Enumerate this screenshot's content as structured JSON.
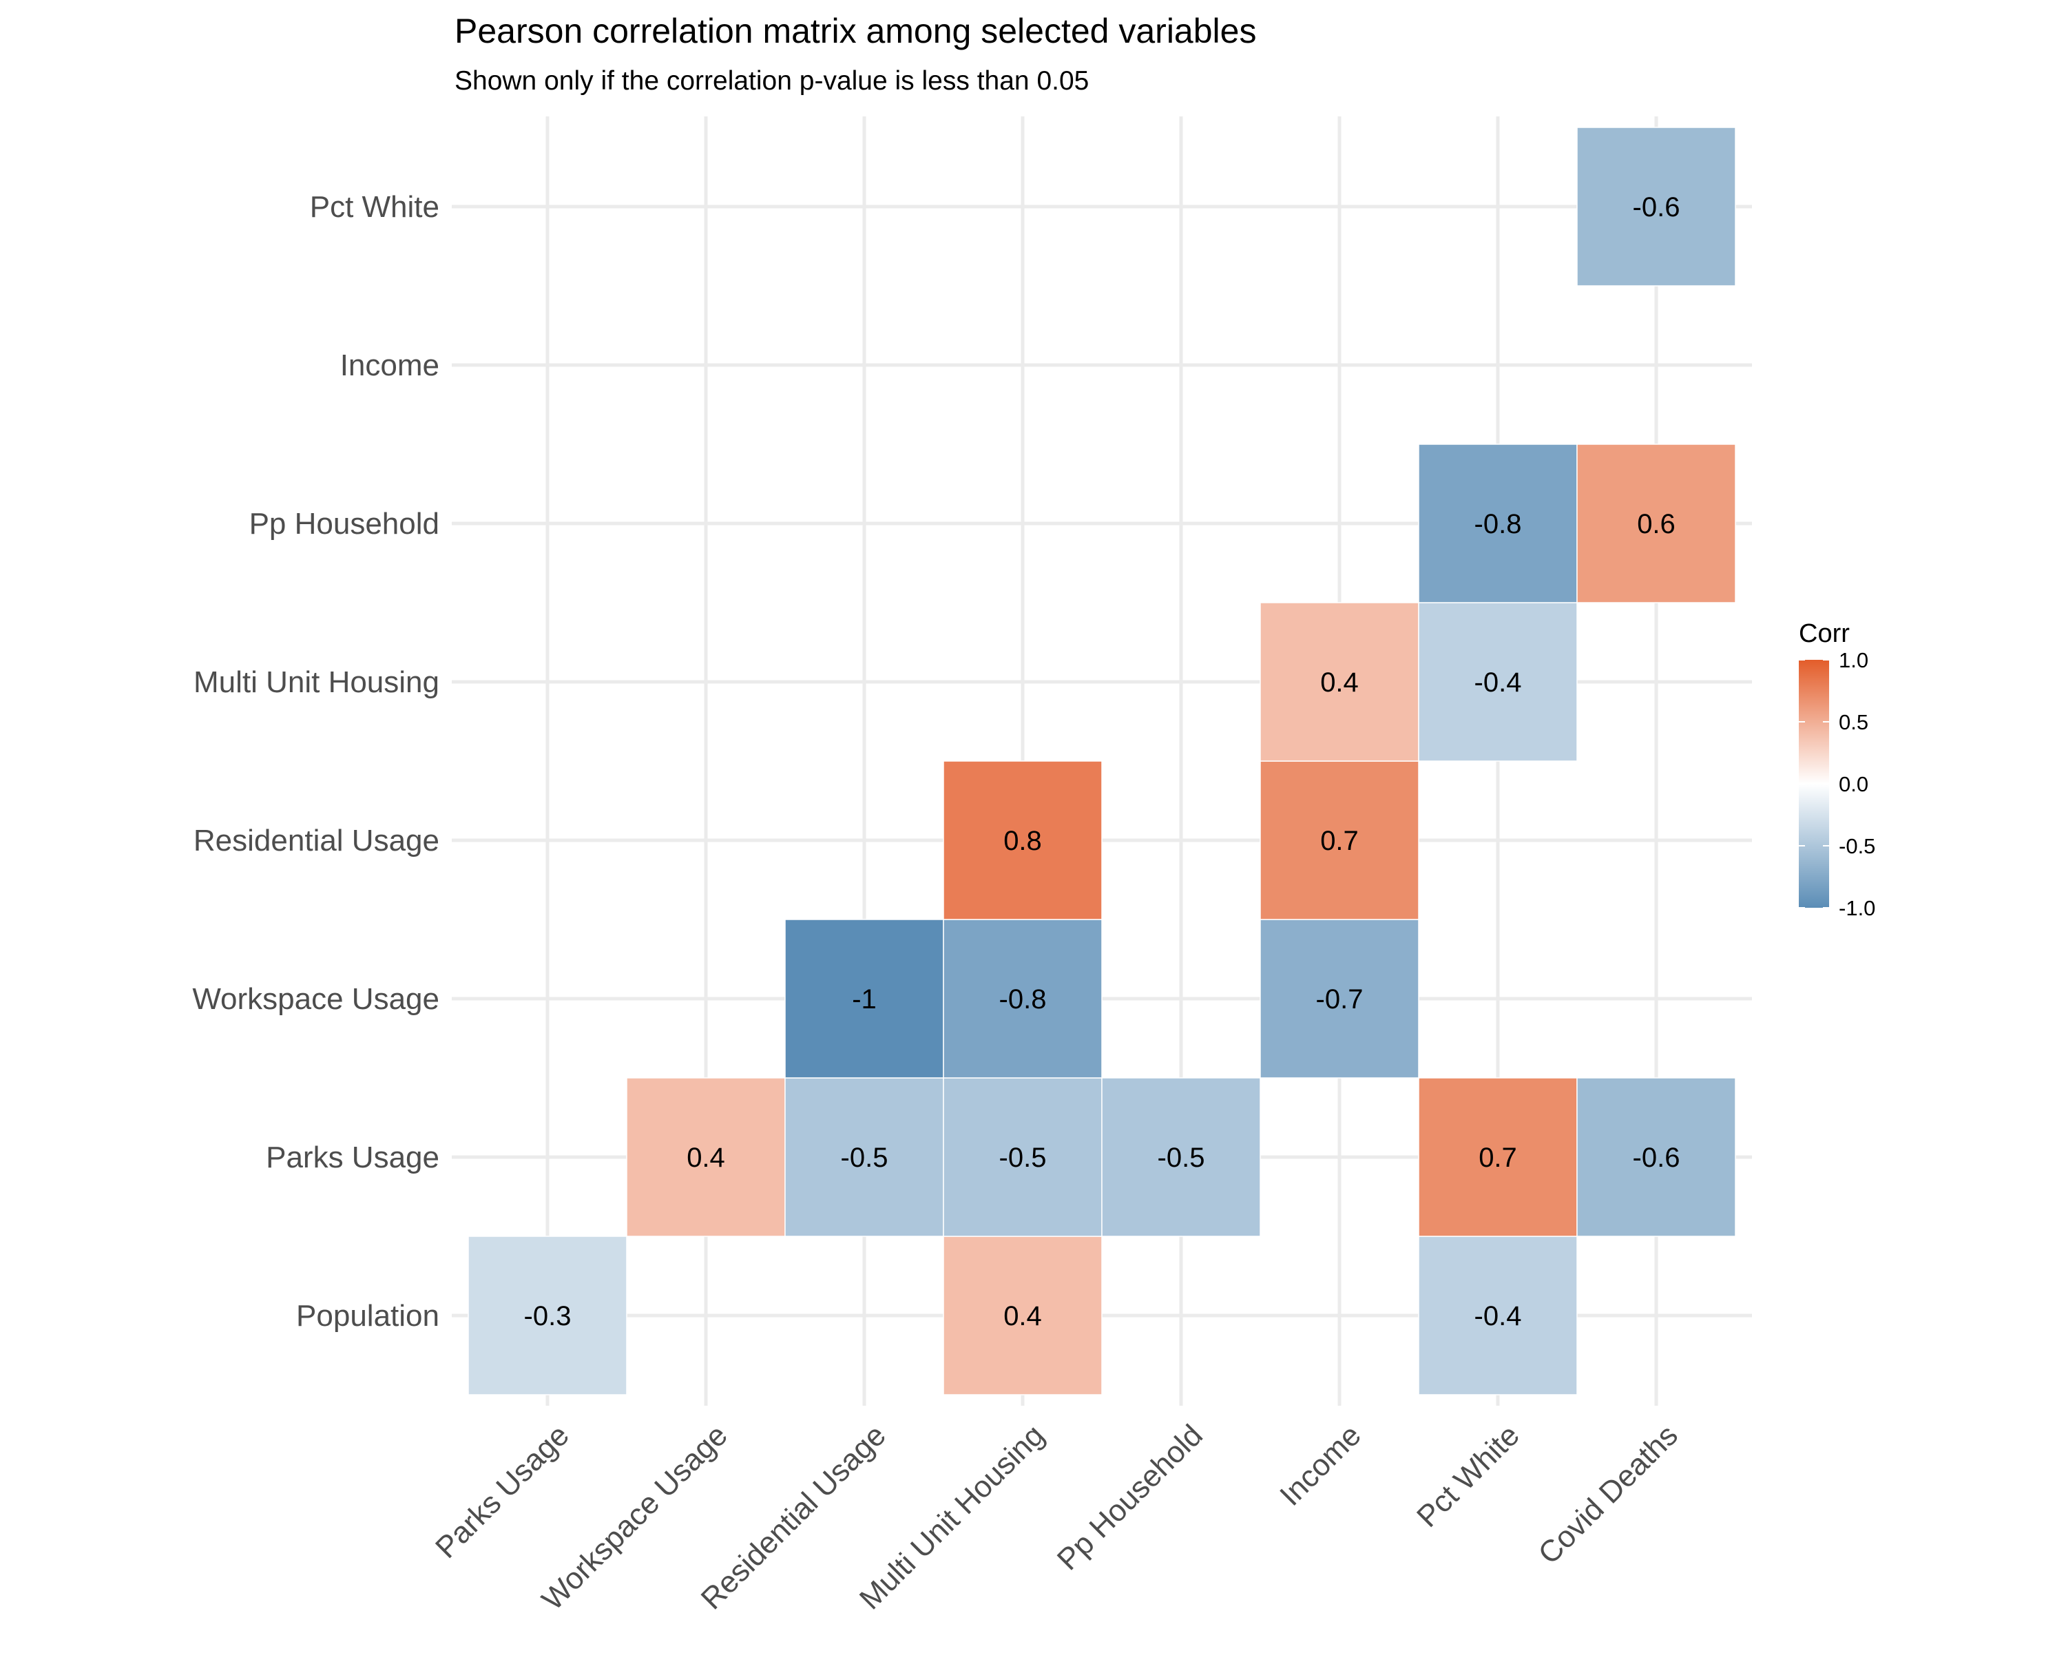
{
  "colors": {
    "low": "#5b8db6",
    "mid": "#ffffff",
    "high": "#e35d2a",
    "grid": "#ebebeb",
    "text": "#000000",
    "axis_text": "#4d4d4d"
  },
  "chart_data": {
    "type": "heatmap",
    "title": "Pearson correlation matrix among selected variables",
    "subtitle": "Shown only if the correlation p-value is less than 0.05",
    "x_categories": [
      "Parks Usage",
      "Workspace Usage",
      "Residential Usage",
      "Multi Unit Housing",
      "Pp Household",
      "Income",
      "Pct White",
      "Covid Deaths"
    ],
    "y_categories": [
      "Population",
      "Parks Usage",
      "Workspace Usage",
      "Residential Usage",
      "Multi Unit Housing",
      "Pp Household",
      "Income",
      "Pct White"
    ],
    "cells": [
      {
        "x": "Parks Usage",
        "y": "Population",
        "value": -0.3,
        "label": "-0.3"
      },
      {
        "x": "Multi Unit Housing",
        "y": "Population",
        "value": 0.4,
        "label": "0.4"
      },
      {
        "x": "Pct White",
        "y": "Population",
        "value": -0.4,
        "label": "-0.4"
      },
      {
        "x": "Workspace Usage",
        "y": "Parks Usage",
        "value": 0.4,
        "label": "0.4"
      },
      {
        "x": "Residential Usage",
        "y": "Parks Usage",
        "value": -0.5,
        "label": "-0.5"
      },
      {
        "x": "Multi Unit Housing",
        "y": "Parks Usage",
        "value": -0.5,
        "label": "-0.5"
      },
      {
        "x": "Pp Household",
        "y": "Parks Usage",
        "value": -0.5,
        "label": "-0.5"
      },
      {
        "x": "Pct White",
        "y": "Parks Usage",
        "value": 0.7,
        "label": "0.7"
      },
      {
        "x": "Covid Deaths",
        "y": "Parks Usage",
        "value": -0.6,
        "label": "-0.6"
      },
      {
        "x": "Residential Usage",
        "y": "Workspace Usage",
        "value": -1.0,
        "label": "-1"
      },
      {
        "x": "Multi Unit Housing",
        "y": "Workspace Usage",
        "value": -0.8,
        "label": "-0.8"
      },
      {
        "x": "Income",
        "y": "Workspace Usage",
        "value": -0.7,
        "label": "-0.7"
      },
      {
        "x": "Multi Unit Housing",
        "y": "Residential Usage",
        "value": 0.8,
        "label": "0.8"
      },
      {
        "x": "Income",
        "y": "Residential Usage",
        "value": 0.7,
        "label": "0.7"
      },
      {
        "x": "Income",
        "y": "Multi Unit Housing",
        "value": 0.4,
        "label": "0.4"
      },
      {
        "x": "Pct White",
        "y": "Multi Unit Housing",
        "value": -0.4,
        "label": "-0.4"
      },
      {
        "x": "Pct White",
        "y": "Pp Household",
        "value": -0.8,
        "label": "-0.8"
      },
      {
        "x": "Covid Deaths",
        "y": "Pp Household",
        "value": 0.6,
        "label": "0.6"
      },
      {
        "x": "Covid Deaths",
        "y": "Pct White",
        "value": -0.6,
        "label": "-0.6"
      }
    ],
    "legend": {
      "title": "Corr",
      "ticks": [
        "1.0",
        "0.5",
        "0.0",
        "-0.5",
        "-1.0"
      ],
      "range": [
        -1.0,
        1.0
      ],
      "placement": "right"
    },
    "grid": true
  }
}
